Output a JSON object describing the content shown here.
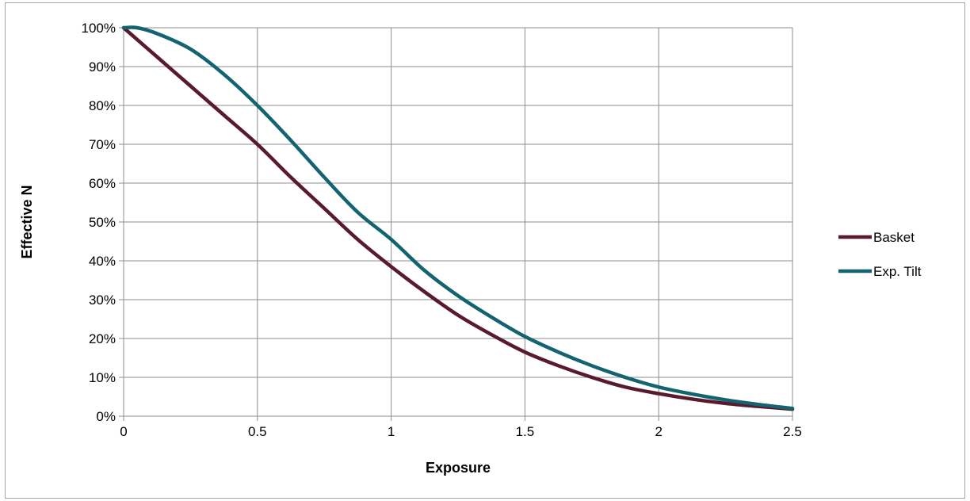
{
  "chart_data": {
    "type": "line",
    "title": "",
    "xlabel": "Exposure",
    "ylabel": "Effective N",
    "xlim": [
      0,
      2.5
    ],
    "ylim": [
      0,
      1
    ],
    "x_ticks": [
      0,
      0.5,
      1,
      1.5,
      2,
      2.5
    ],
    "x_tick_labels": [
      "0",
      "0.5",
      "1",
      "1.5",
      "2",
      "2.5"
    ],
    "y_ticks": [
      0,
      0.1,
      0.2,
      0.3,
      0.4,
      0.5,
      0.6,
      0.7,
      0.8,
      0.9,
      1.0
    ],
    "y_tick_labels": [
      "0%",
      "10%",
      "20%",
      "30%",
      "40%",
      "50%",
      "60%",
      "70%",
      "80%",
      "90%",
      "100%"
    ],
    "grid": true,
    "legend_position": "right",
    "series": [
      {
        "name": "Basket",
        "color": "#5a1a2e",
        "x": [
          0,
          0.125,
          0.25,
          0.375,
          0.5,
          0.625,
          0.75,
          0.875,
          1.0,
          1.125,
          1.25,
          1.375,
          1.5,
          1.625,
          1.75,
          1.875,
          2.0,
          2.125,
          2.25,
          2.375,
          2.5
        ],
        "y": [
          1.0,
          0.925,
          0.85,
          0.775,
          0.7,
          0.615,
          0.535,
          0.455,
          0.385,
          0.32,
          0.26,
          0.21,
          0.165,
          0.13,
          0.1,
          0.075,
          0.058,
          0.044,
          0.033,
          0.025,
          0.018
        ]
      },
      {
        "name": "Exp. Tilt",
        "color": "#136470",
        "x": [
          0,
          0.05,
          0.125,
          0.25,
          0.375,
          0.5,
          0.625,
          0.75,
          0.875,
          1.0,
          1.125,
          1.25,
          1.375,
          1.5,
          1.625,
          1.75,
          1.875,
          2.0,
          2.125,
          2.25,
          2.375,
          2.5
        ],
        "y": [
          1.0,
          1.0,
          0.985,
          0.945,
          0.88,
          0.8,
          0.71,
          0.615,
          0.525,
          0.455,
          0.375,
          0.31,
          0.255,
          0.205,
          0.165,
          0.13,
          0.1,
          0.075,
          0.057,
          0.042,
          0.03,
          0.02
        ]
      }
    ]
  }
}
